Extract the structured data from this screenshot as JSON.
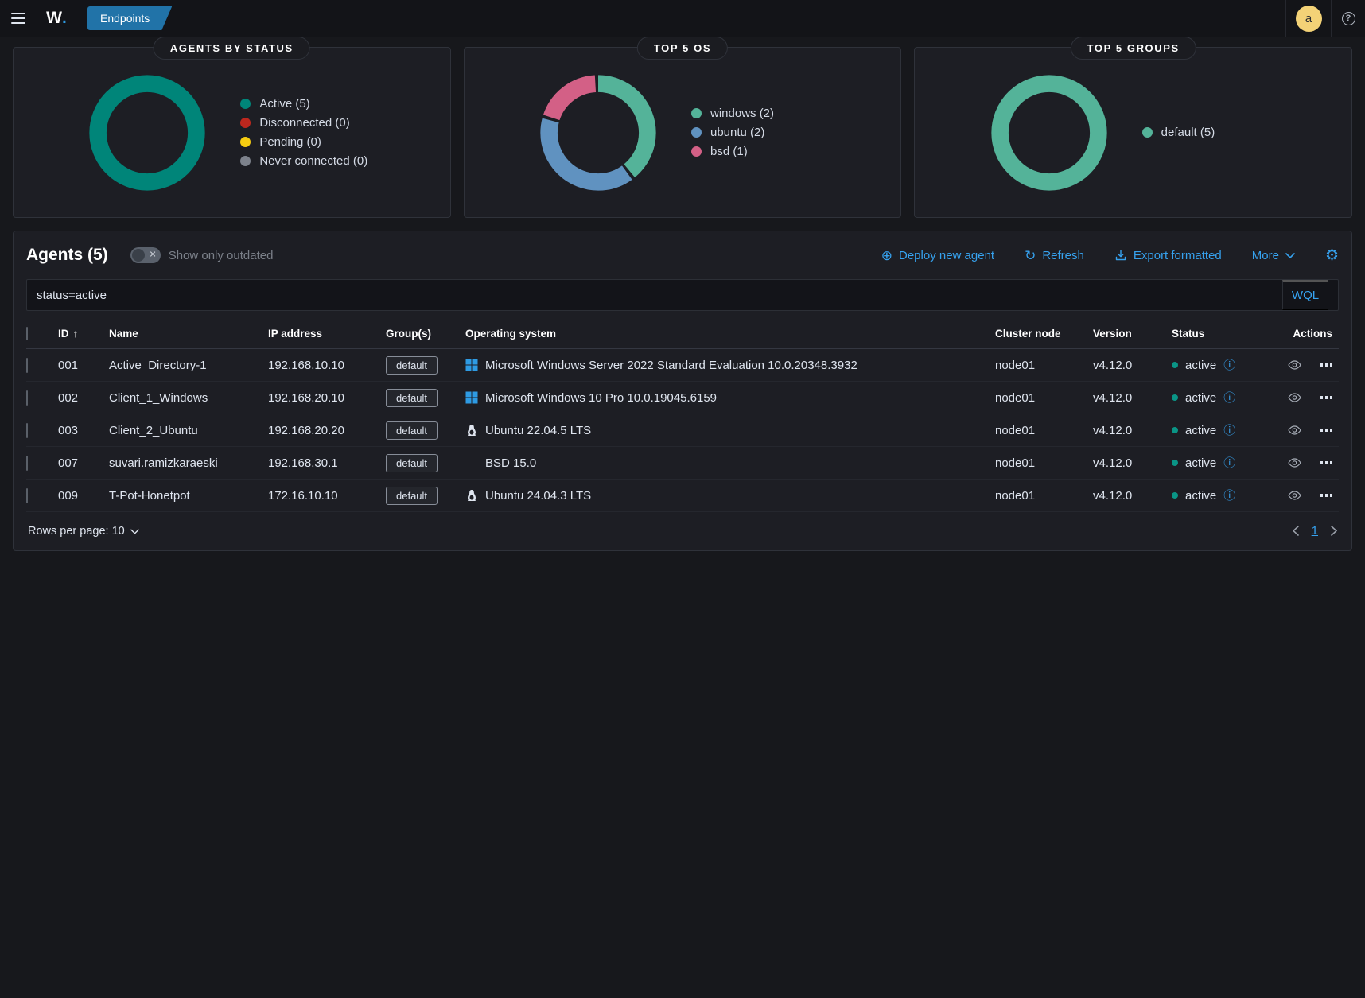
{
  "topbar": {
    "logo_letter": "W",
    "logo_dot": ".",
    "breadcrumb": "Endpoints",
    "avatar_initial": "a",
    "help_mark": "?"
  },
  "chart_data": [
    {
      "type": "pie",
      "donut": true,
      "title": "AGENTS BY STATUS",
      "labels": [
        "Active",
        "Disconnected",
        "Pending",
        "Never connected"
      ],
      "values": [
        5,
        0,
        0,
        0
      ],
      "colors": [
        "#008579",
        "#BD271E",
        "#F5CC11",
        "#7d828c"
      ],
      "legend_position": "right"
    },
    {
      "type": "pie",
      "donut": true,
      "title": "TOP 5 OS",
      "labels": [
        "windows",
        "ubuntu",
        "bsd"
      ],
      "values": [
        2,
        2,
        1
      ],
      "colors": [
        "#54B399",
        "#6092C0",
        "#D36086"
      ],
      "legend_position": "right"
    },
    {
      "type": "pie",
      "donut": true,
      "title": "TOP 5 GROUPS",
      "labels": [
        "default"
      ],
      "values": [
        5
      ],
      "colors": [
        "#54B399"
      ],
      "legend_position": "right"
    }
  ],
  "agents": {
    "title": "Agents (5)",
    "toggle_label": "Show only outdated",
    "toolbar": {
      "deploy": "Deploy new agent",
      "refresh": "Refresh",
      "export": "Export formatted",
      "more": "More"
    },
    "search": {
      "query": "status=active",
      "language": "WQL"
    },
    "table": {
      "columns": [
        "ID",
        "Name",
        "IP address",
        "Group(s)",
        "Operating system",
        "Cluster node",
        "Version",
        "Status",
        "Actions"
      ],
      "rows": [
        {
          "id": "001",
          "name": "Active_Directory-1",
          "ip": "192.168.10.10",
          "group": "default",
          "os_icon": "windows",
          "os": "Microsoft Windows Server 2022 Standard Evaluation 10.0.20348.3932",
          "node": "node01",
          "version": "v4.12.0",
          "status": "active"
        },
        {
          "id": "002",
          "name": "Client_1_Windows",
          "ip": "192.168.20.10",
          "group": "default",
          "os_icon": "windows",
          "os": "Microsoft Windows 10 Pro 10.0.19045.6159",
          "node": "node01",
          "version": "v4.12.0",
          "status": "active"
        },
        {
          "id": "003",
          "name": "Client_2_Ubuntu",
          "ip": "192.168.20.20",
          "group": "default",
          "os_icon": "linux",
          "os": "Ubuntu 22.04.5 LTS",
          "node": "node01",
          "version": "v4.12.0",
          "status": "active"
        },
        {
          "id": "007",
          "name": "suvari.ramizkaraeski",
          "ip": "192.168.30.1",
          "group": "default",
          "os_icon": "none",
          "os": "BSD 15.0",
          "node": "node01",
          "version": "v4.12.0",
          "status": "active"
        },
        {
          "id": "009",
          "name": "T-Pot-Honetpot",
          "ip": "172.16.10.10",
          "group": "default",
          "os_icon": "linux",
          "os": "Ubuntu 24.04.3 LTS",
          "node": "node01",
          "version": "v4.12.0",
          "status": "active"
        }
      ]
    },
    "footer": {
      "rows_per_page": "Rows per page: 10",
      "page": "1"
    }
  },
  "colors": {
    "accent": "#36A2EF",
    "status_active": "#0a9586",
    "windows_icon": "#2E9BE3",
    "linux_icon": "#dfe5ef",
    "badge_bg": "#2173A8",
    "avatar_bg": "#F3D277"
  }
}
